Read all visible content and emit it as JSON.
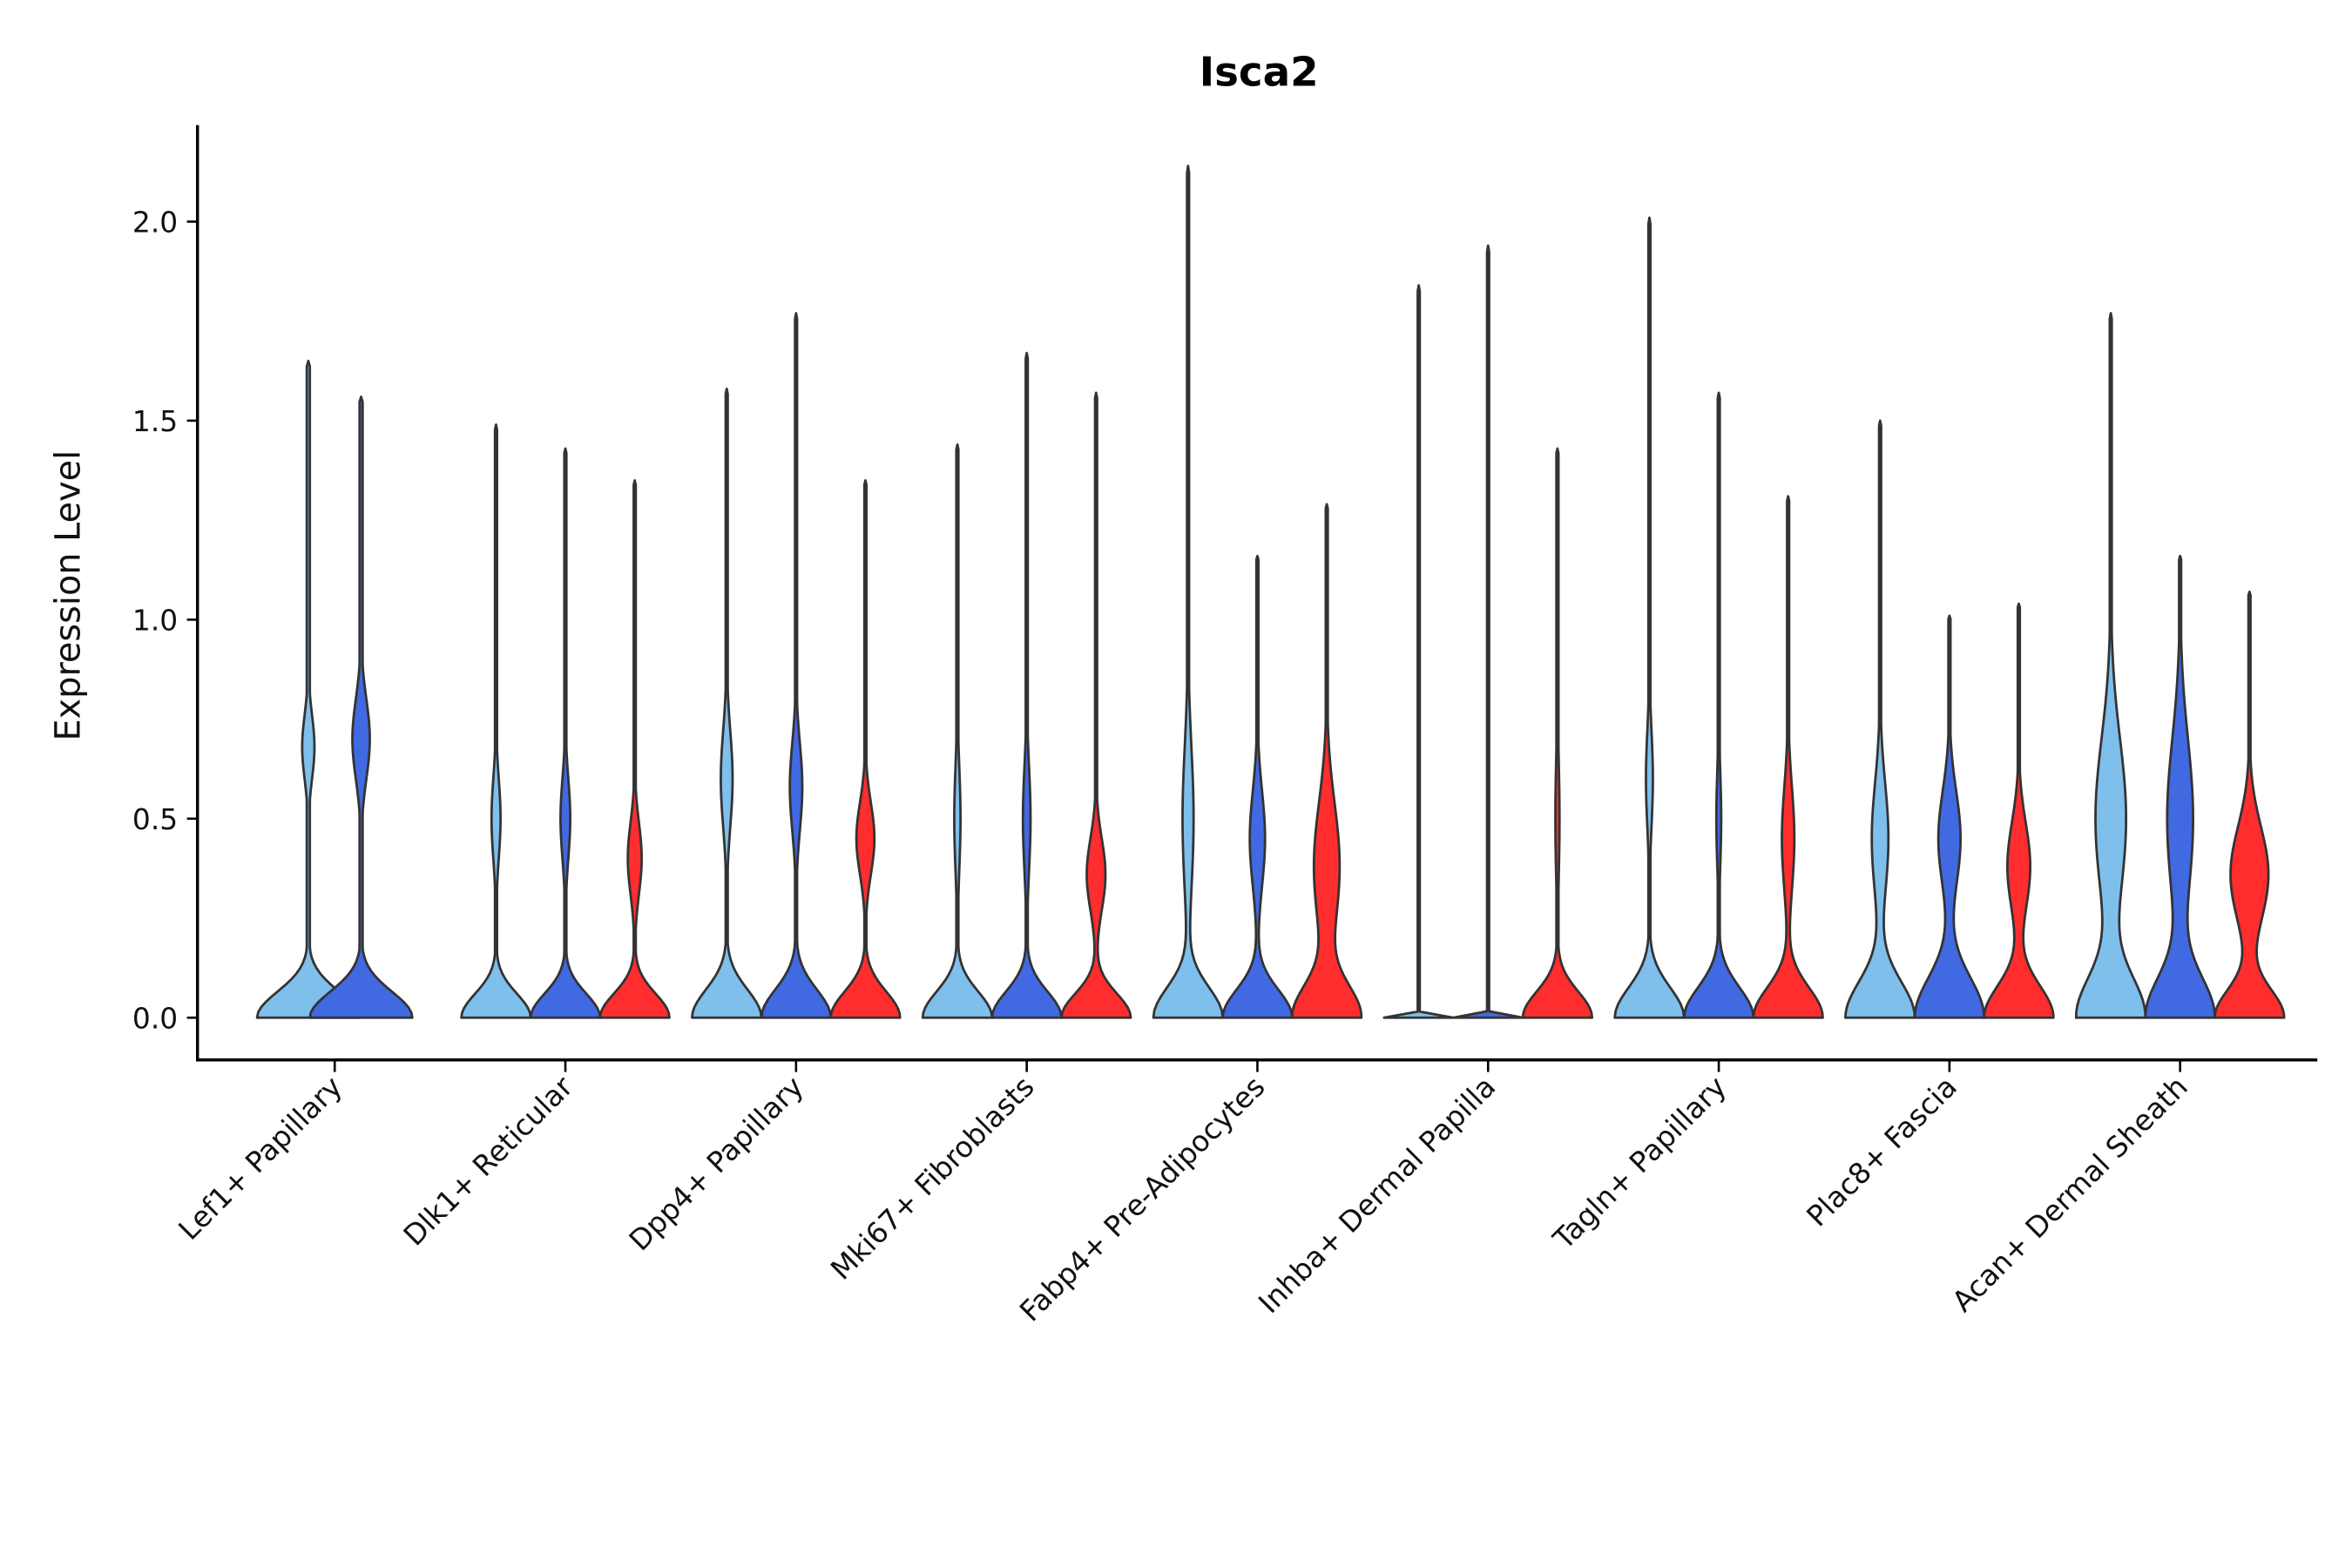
{
  "chart_data": {
    "type": "violin",
    "title": "Isca2",
    "xlabel": "",
    "ylabel": "Expression Level",
    "ylim": [
      -0.106,
      2.24
    ],
    "yticks": [
      "0.0",
      "0.5",
      "1.0",
      "1.5",
      "2.0"
    ],
    "ytick_values": [
      0,
      0.5,
      1.0,
      1.5,
      2.0
    ],
    "grid": false,
    "legend": "none",
    "colors": {
      "g1": "#7fbfec",
      "g2": "#4169e1",
      "g3": "#ff2d2d",
      "outline": "#333333"
    },
    "categories": [
      {
        "label": "Lef1+ Papillary",
        "violins": [
          {
            "group": "g1",
            "max": 1.65,
            "mode": 0.68,
            "bump": 0.12,
            "spread": 0.08,
            "base_sd": 0.065
          },
          {
            "group": "g2",
            "max": 1.56,
            "mode": 0.7,
            "bump": 0.17,
            "spread": 0.1,
            "base_sd": 0.065
          }
        ]
      },
      {
        "label": "Dlk1+ Reticular",
        "violins": [
          {
            "group": "g1",
            "max": 1.49,
            "mode": 0.5,
            "bump": 0.13,
            "spread": 0.1,
            "base_sd": 0.06
          },
          {
            "group": "g2",
            "max": 1.43,
            "mode": 0.5,
            "bump": 0.14,
            "spread": 0.1,
            "base_sd": 0.06
          },
          {
            "group": "g3",
            "max": 1.35,
            "mode": 0.4,
            "bump": 0.2,
            "spread": 0.09,
            "base_sd": 0.06
          }
        ]
      },
      {
        "label": "Dpp4+ Papillary",
        "violins": [
          {
            "group": "g1",
            "max": 1.58,
            "mode": 0.6,
            "bump": 0.17,
            "spread": 0.12,
            "base_sd": 0.07
          },
          {
            "group": "g2",
            "max": 1.77,
            "mode": 0.58,
            "bump": 0.18,
            "spread": 0.11,
            "base_sd": 0.07
          },
          {
            "group": "g3",
            "max": 1.35,
            "mode": 0.45,
            "bump": 0.26,
            "spread": 0.09,
            "base_sd": 0.065
          }
        ]
      },
      {
        "label": "Mki67+ Fibroblasts",
        "violins": [
          {
            "group": "g1",
            "max": 1.44,
            "mode": 0.5,
            "bump": 0.09,
            "spread": 0.13,
            "base_sd": 0.065
          },
          {
            "group": "g2",
            "max": 1.67,
            "mode": 0.5,
            "bump": 0.11,
            "spread": 0.13,
            "base_sd": 0.065
          },
          {
            "group": "g3",
            "max": 1.57,
            "mode": 0.36,
            "bump": 0.27,
            "spread": 0.09,
            "base_sd": 0.06
          }
        ]
      },
      {
        "label": "Fabp4+ Pre-Adipocytes",
        "violins": [
          {
            "group": "g1",
            "max": 2.14,
            "mode": 0.5,
            "bump": 0.16,
            "spread": 0.18,
            "base_sd": 0.075
          },
          {
            "group": "g2",
            "max": 1.16,
            "mode": 0.45,
            "bump": 0.22,
            "spread": 0.12,
            "base_sd": 0.07
          },
          {
            "group": "g3",
            "max": 1.29,
            "mode": 0.38,
            "bump": 0.38,
            "spread": 0.16,
            "base_sd": 0.08
          }
        ]
      },
      {
        "label": "Inhba+ Dermal Papilla",
        "violins": [
          {
            "group": "g1",
            "max": 1.84,
            "mode": 0.5,
            "bump": 0.0,
            "spread": 0.1,
            "base_sd": 0.004
          },
          {
            "group": "g2",
            "max": 1.94,
            "mode": 0.5,
            "bump": 0.0,
            "spread": 0.1,
            "base_sd": 0.004
          },
          {
            "group": "g3",
            "max": 1.43,
            "mode": 0.5,
            "bump": 0.06,
            "spread": 0.15,
            "base_sd": 0.065
          }
        ]
      },
      {
        "label": "Tagln+ Papillary",
        "violins": [
          {
            "group": "g1",
            "max": 2.01,
            "mode": 0.6,
            "bump": 0.1,
            "spread": 0.12,
            "base_sd": 0.075
          },
          {
            "group": "g2",
            "max": 1.57,
            "mode": 0.5,
            "bump": 0.07,
            "spread": 0.12,
            "base_sd": 0.075
          },
          {
            "group": "g3",
            "max": 1.31,
            "mode": 0.45,
            "bump": 0.18,
            "spread": 0.13,
            "base_sd": 0.075
          }
        ]
      },
      {
        "label": "Plac8+ Fascia",
        "violins": [
          {
            "group": "g1",
            "max": 1.5,
            "mode": 0.45,
            "bump": 0.24,
            "spread": 0.14,
            "base_sd": 0.09
          },
          {
            "group": "g2",
            "max": 1.01,
            "mode": 0.45,
            "bump": 0.32,
            "spread": 0.12,
            "base_sd": 0.1
          },
          {
            "group": "g3",
            "max": 1.04,
            "mode": 0.38,
            "bump": 0.33,
            "spread": 0.11,
            "base_sd": 0.08
          }
        ]
      },
      {
        "label": "Acan+ Dermal Sheath",
        "violins": [
          {
            "group": "g1",
            "max": 1.77,
            "mode": 0.5,
            "bump": 0.45,
            "spread": 0.2,
            "base_sd": 0.1
          },
          {
            "group": "g2",
            "max": 1.16,
            "mode": 0.5,
            "bump": 0.38,
            "spread": 0.2,
            "base_sd": 0.1
          },
          {
            "group": "g3",
            "max": 1.07,
            "mode": 0.36,
            "bump": 0.55,
            "spread": 0.12,
            "base_sd": 0.07
          }
        ]
      }
    ]
  }
}
